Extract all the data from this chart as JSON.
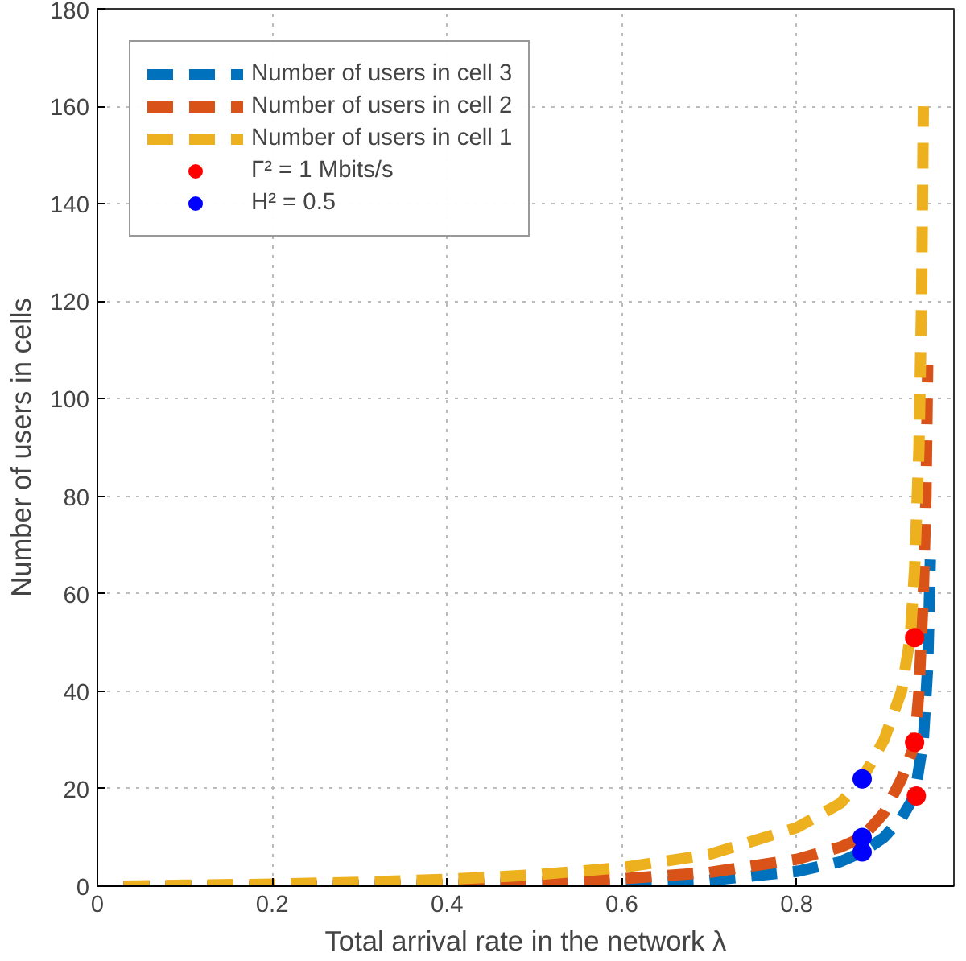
{
  "chart_data": {
    "type": "line",
    "xlabel": "Total arrival rate in the network λ",
    "ylabel": "Number of users in cells",
    "xlim": [
      0,
      0.98
    ],
    "ylim": [
      0,
      180
    ],
    "xticks": [
      0,
      0.2,
      0.4,
      0.6,
      0.8
    ],
    "yticks": [
      0,
      20,
      40,
      60,
      80,
      100,
      120,
      140,
      160,
      180
    ],
    "grid": true,
    "legend": "top left",
    "line_style": "dashed",
    "series": [
      {
        "name": "Number of users in cell 3",
        "color": "#0072bd",
        "x": [
          0.03,
          0.4,
          0.6,
          0.7,
          0.8,
          0.85,
          0.875,
          0.9,
          0.92,
          0.935,
          0.945,
          0.95,
          0.953
        ],
        "values": [
          0,
          0.1,
          0.5,
          1.2,
          3,
          5,
          7,
          10,
          14,
          18.5,
          30,
          45,
          67
        ]
      },
      {
        "name": "Number of users in cell 2",
        "color": "#d95319",
        "x": [
          0.03,
          0.2,
          0.4,
          0.5,
          0.6,
          0.7,
          0.8,
          0.85,
          0.875,
          0.9,
          0.92,
          0.935,
          0.94,
          0.945,
          0.948,
          0.95
        ],
        "values": [
          0,
          0.1,
          0.4,
          0.8,
          1.5,
          2.8,
          5.5,
          8,
          10,
          15,
          22,
          29,
          40,
          60,
          80,
          107
        ]
      },
      {
        "name": "Number of users in cell 1",
        "color": "#edb120",
        "x": [
          0.03,
          0.1,
          0.2,
          0.3,
          0.4,
          0.5,
          0.6,
          0.7,
          0.8,
          0.85,
          0.875,
          0.9,
          0.92,
          0.93,
          0.935,
          0.94,
          0.943,
          0.945
        ],
        "values": [
          0,
          0.2,
          0.4,
          0.8,
          1.4,
          2.3,
          3.8,
          6.5,
          12,
          17,
          22,
          30,
          40,
          51,
          65,
          90,
          120,
          160
        ]
      },
      {
        "name": "Γ² = 1 Mbits/s",
        "type": "scatter",
        "marker": "circle",
        "color": "#ff0000",
        "x": [
          0.935,
          0.935,
          0.937
        ],
        "values": [
          51,
          29.5,
          18.5
        ]
      },
      {
        "name": "H² = 0.5",
        "type": "scatter",
        "marker": "circle",
        "color": "#0000ff",
        "x": [
          0.875,
          0.875,
          0.875
        ],
        "values": [
          22,
          10,
          7
        ]
      }
    ]
  }
}
